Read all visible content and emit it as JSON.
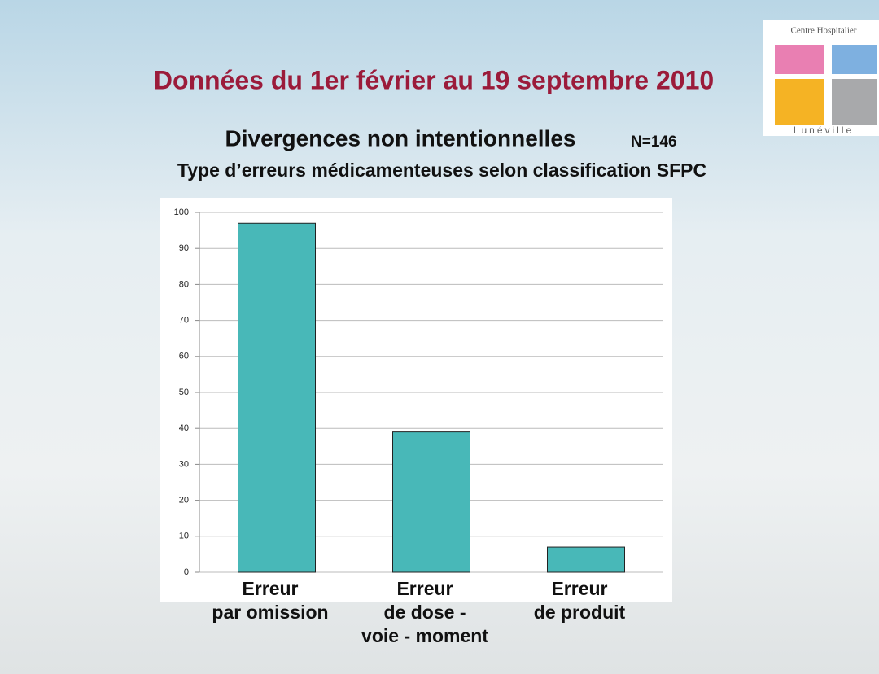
{
  "header": {
    "title": "Données du 1er février au 19 septembre 2010",
    "logo_top": "Centre Hospitalier",
    "logo_bottom": "Lunéville"
  },
  "chart_data": {
    "type": "bar",
    "title": "Divergences non intentionnelles",
    "title_note": "N=146",
    "subtitle": "Type d’erreurs médicamenteuses selon classification SFPC",
    "categories": [
      "Erreur\npar omission",
      "Erreur\nde dose -\nvoie - moment",
      "Erreur\nde produit"
    ],
    "values": [
      97,
      39,
      7
    ],
    "color": "#48b8b8",
    "ylim": [
      0,
      100
    ],
    "yticks": [
      0,
      10,
      20,
      30,
      40,
      50,
      60,
      70,
      80,
      90,
      100
    ],
    "grid": true
  }
}
